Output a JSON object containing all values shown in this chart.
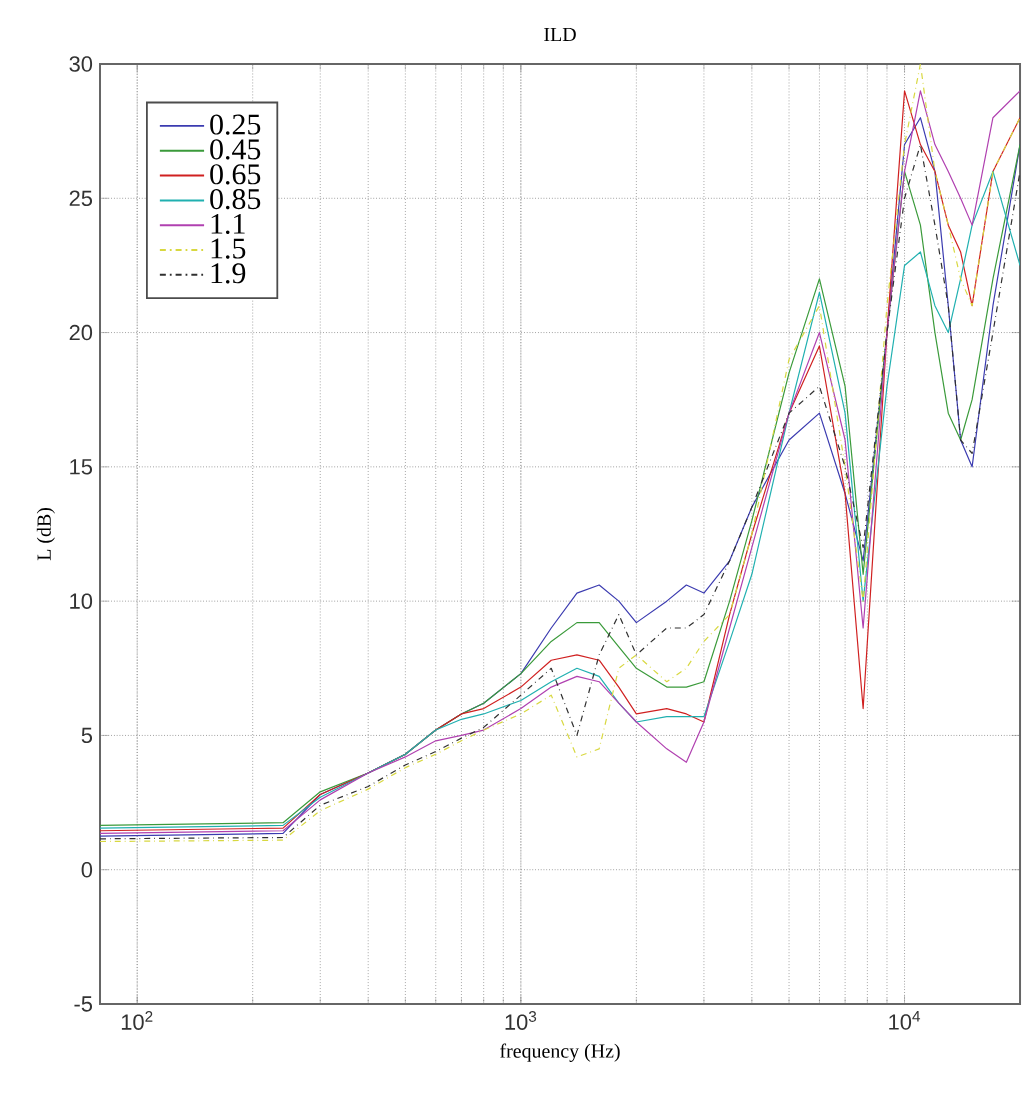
{
  "chart_data": {
    "type": "line",
    "title": "ILD",
    "xlabel": "frequency (Hz)",
    "ylabel": "L (dB)",
    "log": "x",
    "grid": true,
    "legend": "top left",
    "xlim": [
      80,
      20000
    ],
    "ylim": [
      -5,
      30
    ],
    "xticks": [
      {
        "value": 100,
        "label": "10$^{2}$"
      },
      {
        "value": 1000,
        "label": "10$^{3}$"
      },
      {
        "value": 10000,
        "label": "10$^{4}$"
      }
    ],
    "yticks": [
      -5,
      0,
      5,
      10,
      15,
      20,
      25,
      30
    ],
    "x": [
      80,
      240,
      300,
      400,
      500,
      600,
      700,
      800,
      1000,
      1200,
      1400,
      1600,
      1800,
      2000,
      2400,
      2700,
      3000,
      3500,
      4000,
      5000,
      6000,
      7000,
      7800,
      9000,
      10000,
      11000,
      12000,
      13000,
      14000,
      15000,
      17000,
      20000
    ],
    "series": [
      {
        "name": "0.25",
        "color": "#3b3bb0",
        "line_style": "solid",
        "values": [
          1.25,
          1.35,
          2.8,
          3.6,
          4.3,
          5.2,
          5.8,
          6.2,
          7.3,
          9.0,
          10.3,
          10.6,
          10.0,
          9.2,
          10.0,
          10.6,
          10.3,
          11.5,
          13.5,
          16.0,
          17.0,
          14.0,
          11.5,
          20.0,
          27.0,
          28.0,
          26.0,
          21.0,
          16.0,
          15.0,
          21.0,
          27.0
        ]
      },
      {
        "name": "0.45",
        "color": "#3a9a3a",
        "line_style": "solid",
        "values": [
          1.65,
          1.75,
          2.9,
          3.6,
          4.3,
          5.2,
          5.8,
          6.2,
          7.3,
          8.5,
          9.2,
          9.2,
          8.3,
          7.5,
          6.8,
          6.8,
          7.0,
          10.0,
          13.0,
          18.5,
          22.0,
          18.0,
          11.0,
          20.0,
          26.0,
          24.0,
          20.0,
          17.0,
          16.0,
          17.5,
          22.0,
          27.0
        ]
      },
      {
        "name": "0.65",
        "color": "#d02020",
        "line_style": "solid",
        "values": [
          1.45,
          1.55,
          2.8,
          3.6,
          4.3,
          5.2,
          5.8,
          6.0,
          6.8,
          7.8,
          8.0,
          7.8,
          6.8,
          5.8,
          6.0,
          5.8,
          5.5,
          9.5,
          12.5,
          17.0,
          19.5,
          14.0,
          6.0,
          20.0,
          29.0,
          27.0,
          26.0,
          24.0,
          23.0,
          21.0,
          26.0,
          28.0
        ]
      },
      {
        "name": "0.85",
        "color": "#20b0b0",
        "line_style": "solid",
        "values": [
          1.55,
          1.65,
          2.7,
          3.6,
          4.3,
          5.2,
          5.6,
          5.8,
          6.3,
          7.0,
          7.5,
          7.2,
          6.2,
          5.5,
          5.7,
          5.7,
          5.7,
          8.5,
          11.0,
          17.0,
          21.5,
          17.0,
          10.0,
          18.0,
          22.5,
          23.0,
          21.0,
          20.0,
          22.0,
          24.0,
          26.0,
          22.5
        ]
      },
      {
        "name": "1.1",
        "color": "#b040b0",
        "line_style": "solid",
        "values": [
          1.35,
          1.45,
          2.6,
          3.6,
          4.2,
          4.8,
          5.0,
          5.2,
          6.0,
          6.8,
          7.2,
          7.0,
          6.2,
          5.5,
          4.5,
          4.0,
          5.5,
          9.0,
          12.0,
          17.0,
          20.0,
          16.0,
          9.0,
          20.0,
          26.0,
          29.0,
          27.0,
          26.0,
          25.0,
          24.0,
          28.0,
          29.0
        ]
      },
      {
        "name": "1.5",
        "color": "#d8d840",
        "line_style": "dashdot",
        "values": [
          1.05,
          1.1,
          2.2,
          3.0,
          3.8,
          4.3,
          4.8,
          5.2,
          5.8,
          6.5,
          4.2,
          4.5,
          7.5,
          8.0,
          7.0,
          7.5,
          8.5,
          9.5,
          12.5,
          19.0,
          21.0,
          15.0,
          10.0,
          21.0,
          27.0,
          30.0,
          26.0,
          24.0,
          22.0,
          21.0,
          26.0,
          28.0
        ]
      },
      {
        "name": "1.9",
        "color": "#303030",
        "line_style": "dashdot",
        "values": [
          1.15,
          1.2,
          2.4,
          3.1,
          3.9,
          4.4,
          4.9,
          5.3,
          6.5,
          7.5,
          5.0,
          8.0,
          9.5,
          8.0,
          9.0,
          9.0,
          9.5,
          11.5,
          13.5,
          17.0,
          18.0,
          15.0,
          12.0,
          20.0,
          25.0,
          27.0,
          24.0,
          21.0,
          16.0,
          15.5,
          20.0,
          26.0
        ]
      }
    ]
  }
}
